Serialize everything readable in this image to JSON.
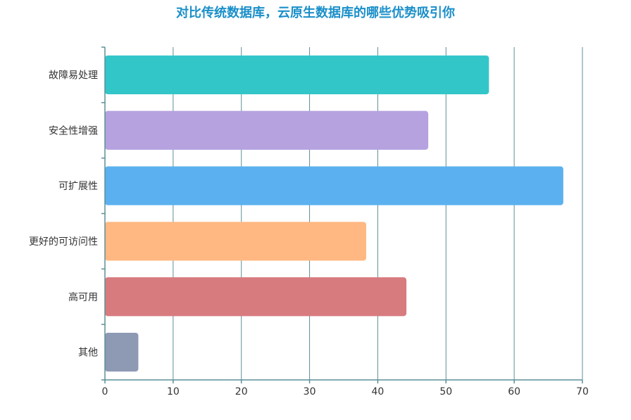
{
  "chart_data": {
    "type": "bar",
    "orientation": "horizontal",
    "title": "对比传统数据库，云原生数据库的哪些优势吸引你",
    "categories": [
      "故障易处理",
      "安全性增强",
      "可扩展性",
      "更好的可访问性",
      "高可用",
      "其他"
    ],
    "values": [
      56.3,
      47.4,
      67.2,
      38.3,
      44.2,
      4.9
    ],
    "colors": [
      "#33c6c9",
      "#b5a2df",
      "#5bb1ef",
      "#ffb882",
      "#d77b7f",
      "#8e9ab4"
    ],
    "xlim": [
      0,
      70
    ],
    "xticks": [
      0,
      10,
      20,
      30,
      40,
      50,
      60,
      70
    ],
    "grid": true,
    "grid_color": "#5b8f97",
    "xlabel": "",
    "ylabel": ""
  }
}
